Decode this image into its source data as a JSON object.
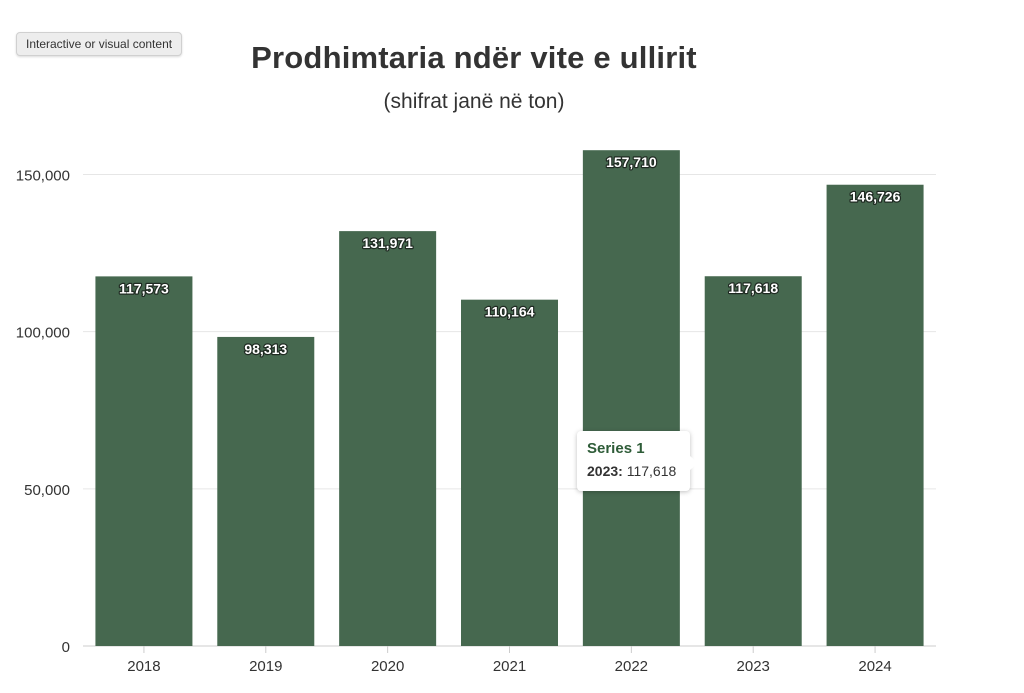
{
  "badge": "Interactive or visual content",
  "tooltip": {
    "series": "Series 1",
    "category": "2023:",
    "value": "117,618"
  },
  "chart_data": {
    "type": "bar",
    "title": "Prodhimtaria ndër vite e ullirit",
    "subtitle": "(shifrat janë në ton)",
    "xlabel": "",
    "ylabel": "",
    "categories": [
      "2018",
      "2019",
      "2020",
      "2021",
      "2022",
      "2023",
      "2024"
    ],
    "series": [
      {
        "name": "Series 1",
        "values": [
          117573,
          98313,
          131971,
          110164,
          157710,
          117618,
          146726
        ]
      }
    ],
    "data_labels": [
      "117,573",
      "98,313",
      "131,971",
      "110,164",
      "157,710",
      "117,618",
      "146,726"
    ],
    "ylim": [
      0,
      160000
    ],
    "yticks": [
      0,
      50000,
      100000,
      150000
    ],
    "ytick_labels": [
      "0",
      "50,000",
      "100,000",
      "150,000"
    ],
    "grid": true,
    "legend": "none",
    "colors": {
      "bar": "#46684f",
      "grid": "#e6e6e6",
      "axis": "#cccccc",
      "text": "#333333"
    }
  }
}
